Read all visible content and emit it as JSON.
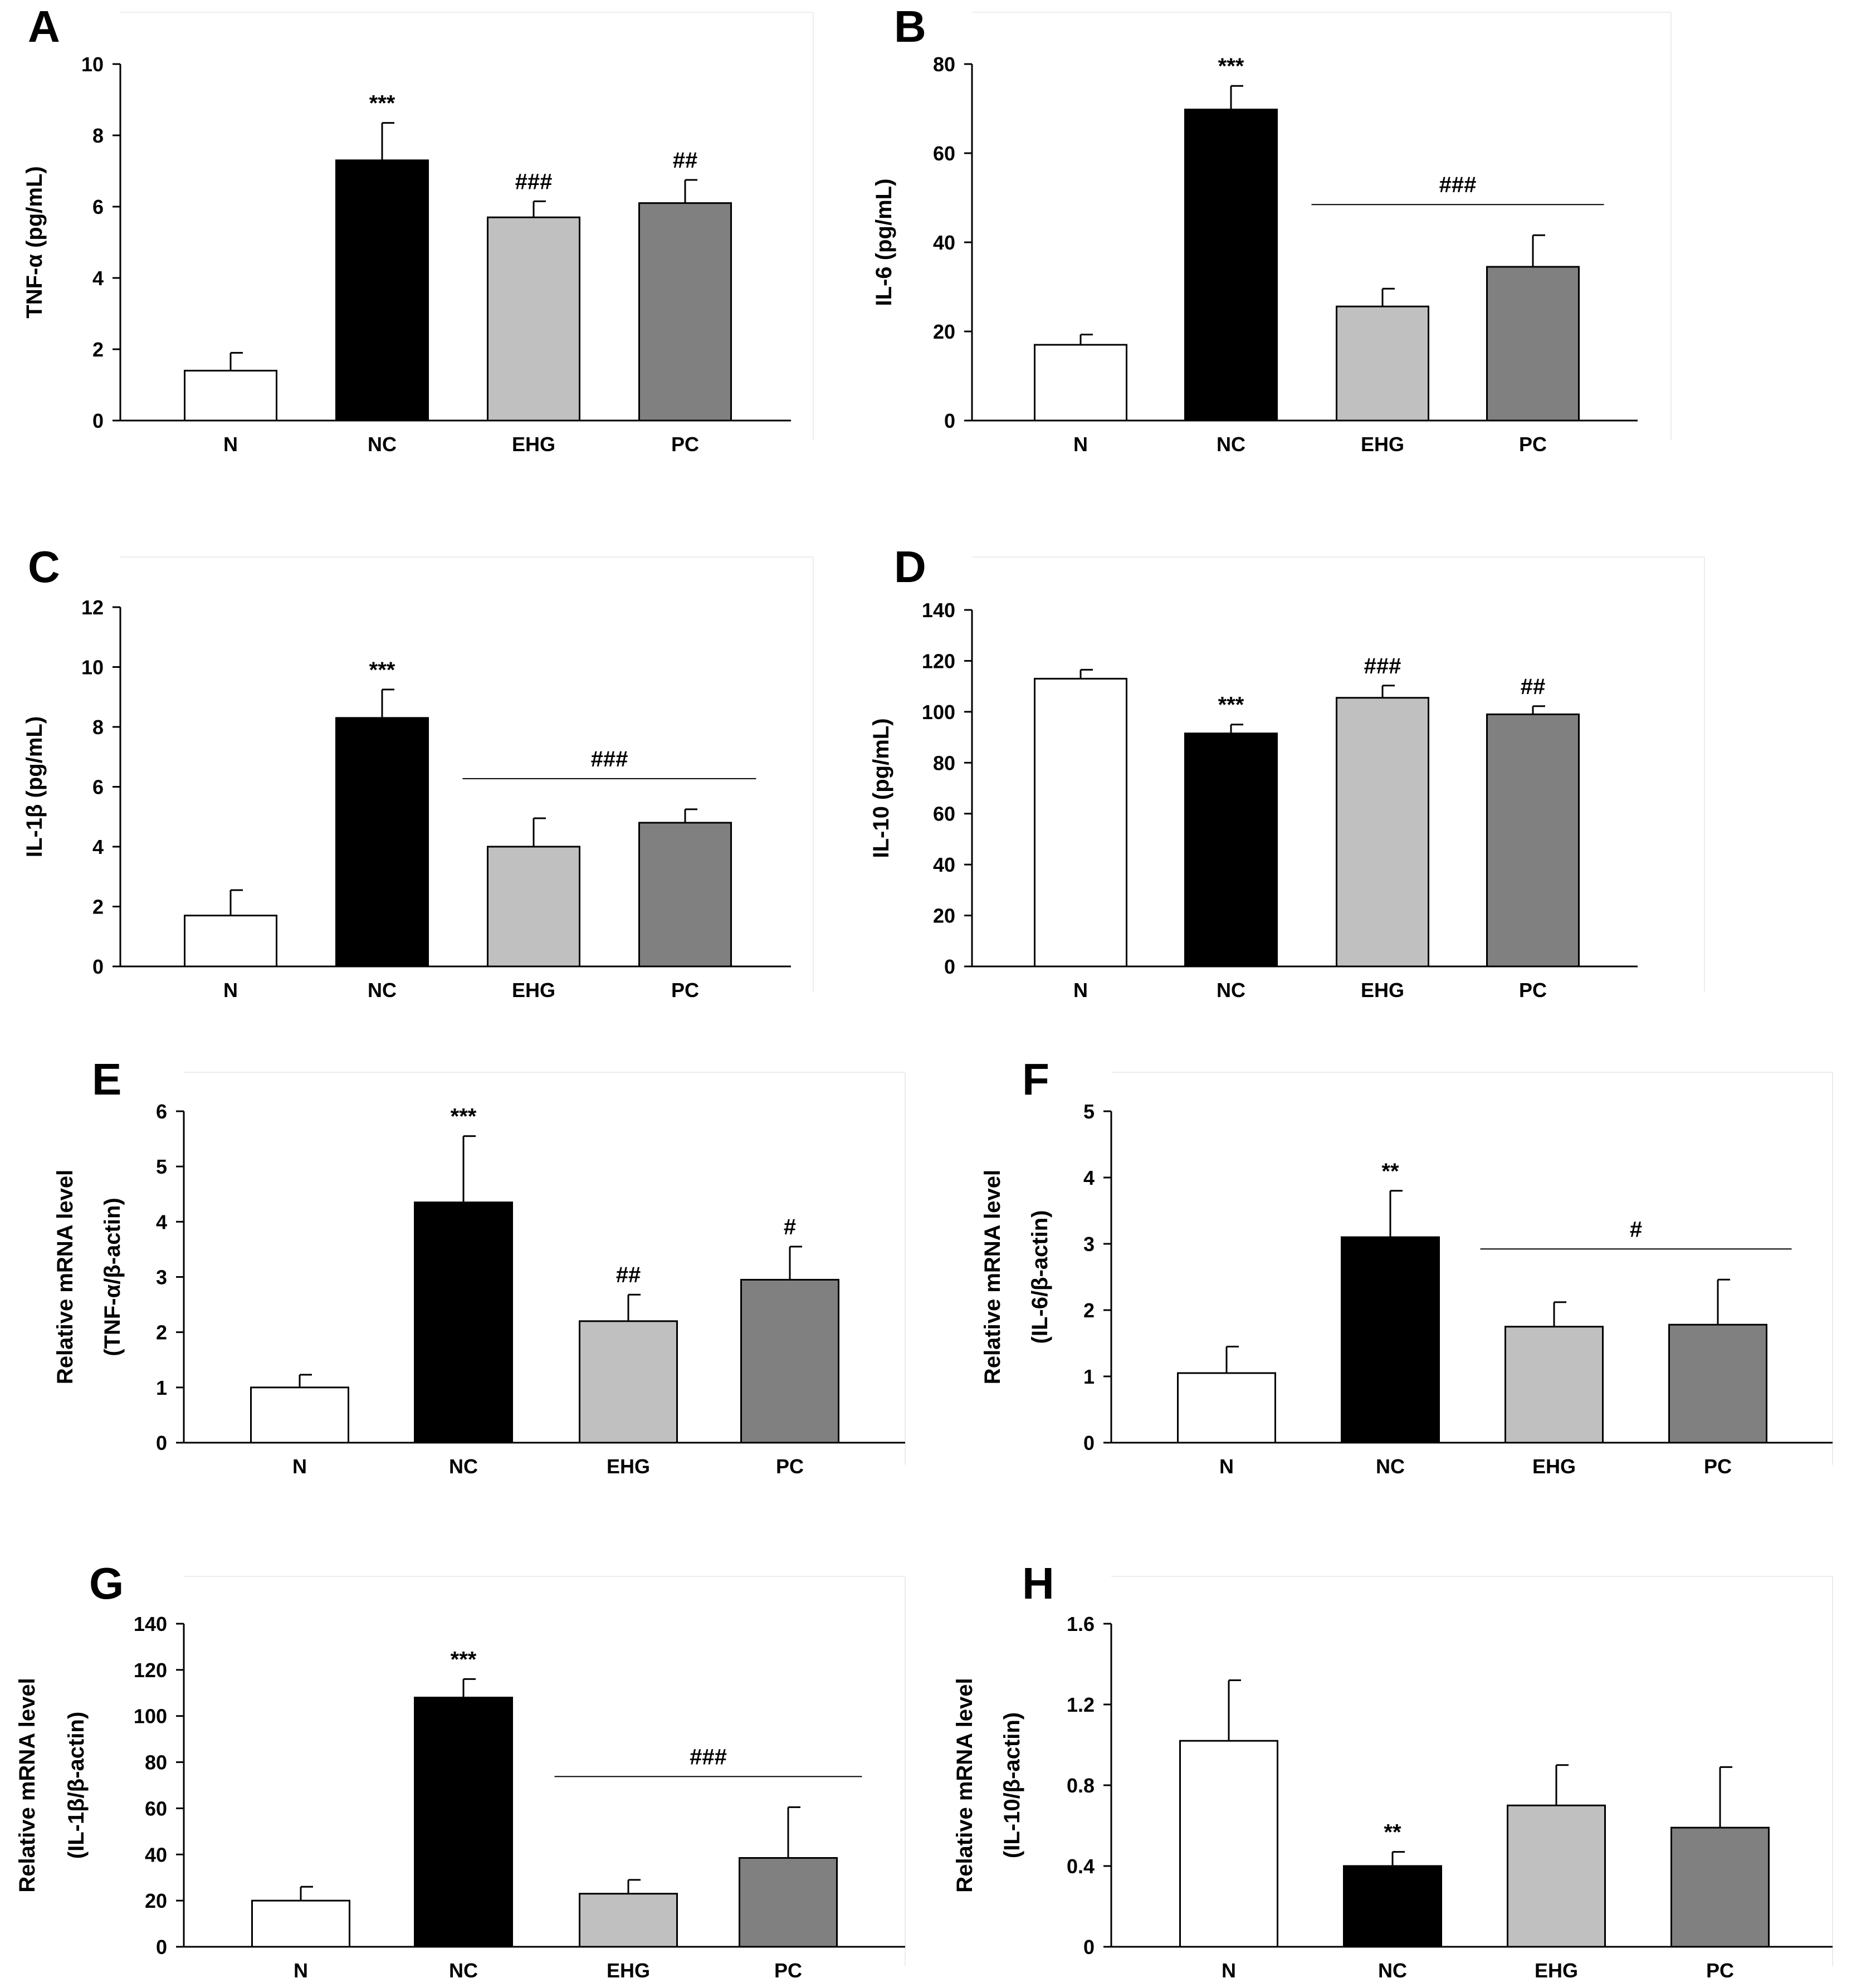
{
  "figure_colors": {
    "N": "#ffffff",
    "NC": "#000000",
    "EHG": "#c0c0c0",
    "PC": "#808080"
  },
  "chart_data": [
    {
      "type": "bar",
      "panel": "A",
      "title": "",
      "xlabel": "",
      "ylabel": "TNF-α (pg/mL)",
      "ylim": [
        0,
        10
      ],
      "yticks": [
        "0",
        "2",
        "4",
        "6",
        "8",
        "10"
      ],
      "categories": [
        "N",
        "NC",
        "EHG",
        "PC"
      ],
      "values": [
        1.4,
        7.3,
        5.7,
        6.1
      ],
      "errors": [
        0.5,
        1.05,
        0.45,
        0.65
      ],
      "annotations": [
        "",
        "***",
        "###",
        "##"
      ],
      "bracket": null
    },
    {
      "type": "bar",
      "panel": "B",
      "title": "",
      "xlabel": "",
      "ylabel": "IL-6 (pg/mL)",
      "ylim": [
        0,
        80
      ],
      "yticks": [
        "0",
        "20",
        "40",
        "60",
        "80"
      ],
      "categories": [
        "N",
        "NC",
        "EHG",
        "PC"
      ],
      "values": [
        17,
        69.8,
        25.6,
        34.5
      ],
      "errors": [
        2.3,
        5.3,
        4.0,
        7.1
      ],
      "annotations": [
        "",
        "***",
        "",
        ""
      ],
      "bracket": {
        "label": "###",
        "from": 2,
        "to": 3
      }
    },
    {
      "type": "bar",
      "panel": "C",
      "title": "",
      "xlabel": "",
      "ylabel": "IL-1β (pg/mL)",
      "ylim": [
        0,
        12
      ],
      "yticks": [
        "0",
        "2",
        "4",
        "6",
        "8",
        "10",
        "12"
      ],
      "categories": [
        "N",
        "NC",
        "EHG",
        "PC"
      ],
      "values": [
        1.7,
        8.3,
        4.0,
        4.8
      ],
      "errors": [
        0.85,
        0.95,
        0.95,
        0.45
      ],
      "annotations": [
        "",
        "***",
        "",
        ""
      ],
      "bracket": {
        "label": "###",
        "from": 2,
        "to": 3
      }
    },
    {
      "type": "bar",
      "panel": "D",
      "title": "",
      "xlabel": "",
      "ylabel": "IL-10 (pg/mL)",
      "ylim": [
        0,
        140
      ],
      "yticks": [
        "0",
        "20",
        "40",
        "60",
        "80",
        "100",
        "120",
        "140"
      ],
      "categories": [
        "N",
        "NC",
        "EHG",
        "PC"
      ],
      "values": [
        113,
        91.5,
        105.5,
        99
      ],
      "errors": [
        3.5,
        3.5,
        4.8,
        3.2
      ],
      "annotations": [
        "",
        "***",
        "###",
        "##"
      ],
      "bracket": null
    },
    {
      "type": "bar",
      "panel": "E",
      "title": "",
      "xlabel": "",
      "ylabel": "Relative mRNA level",
      "ylabel2": "(TNF-α/β-actin)",
      "ylim": [
        0,
        6
      ],
      "yticks": [
        "0",
        "1",
        "2",
        "3",
        "4",
        "5",
        "6"
      ],
      "categories": [
        "N",
        "NC",
        "EHG",
        "PC"
      ],
      "values": [
        1.0,
        4.35,
        2.2,
        2.95
      ],
      "errors": [
        0.23,
        1.2,
        0.48,
        0.6
      ],
      "annotations": [
        "",
        "***",
        "##",
        "#"
      ],
      "bracket": null
    },
    {
      "type": "bar",
      "panel": "F",
      "title": "",
      "xlabel": "",
      "ylabel": "Relative mRNA level",
      "ylabel2": "(IL-6/β-actin)",
      "ylim": [
        0,
        5
      ],
      "yticks": [
        "0",
        "1",
        "2",
        "3",
        "4",
        "5"
      ],
      "categories": [
        "N",
        "NC",
        "EHG",
        "PC"
      ],
      "values": [
        1.05,
        3.1,
        1.75,
        1.78
      ],
      "errors": [
        0.4,
        0.7,
        0.37,
        0.68
      ],
      "annotations": [
        "",
        "**",
        "",
        ""
      ],
      "bracket": {
        "label": "#",
        "from": 2,
        "to": 3
      }
    },
    {
      "type": "bar",
      "panel": "G",
      "title": "",
      "xlabel": "",
      "ylabel": "Relative mRNA level",
      "ylabel2": "(IL-1β/β-actin)",
      "ylim": [
        0,
        140
      ],
      "yticks": [
        "0",
        "20",
        "40",
        "60",
        "80",
        "100",
        "120",
        "140"
      ],
      "categories": [
        "N",
        "NC",
        "EHG",
        "PC"
      ],
      "values": [
        20,
        108,
        23,
        38.5
      ],
      "errors": [
        6,
        8,
        6,
        22
      ],
      "annotations": [
        "",
        "***",
        "",
        ""
      ],
      "bracket": {
        "label": "###",
        "from": 2,
        "to": 3
      }
    },
    {
      "type": "bar",
      "panel": "H",
      "title": "",
      "xlabel": "",
      "ylabel": "Relative mRNA level",
      "ylabel2": "(IL-10/β-actin)",
      "ylim": [
        0,
        1.6
      ],
      "yticks": [
        "0",
        "0.4",
        "0.8",
        "1.2",
        "1.6"
      ],
      "categories": [
        "N",
        "NC",
        "EHG",
        "PC"
      ],
      "values": [
        1.02,
        0.4,
        0.7,
        0.59
      ],
      "errors": [
        0.3,
        0.07,
        0.2,
        0.3
      ],
      "annotations": [
        "",
        "**",
        "",
        ""
      ],
      "bracket": null
    }
  ]
}
